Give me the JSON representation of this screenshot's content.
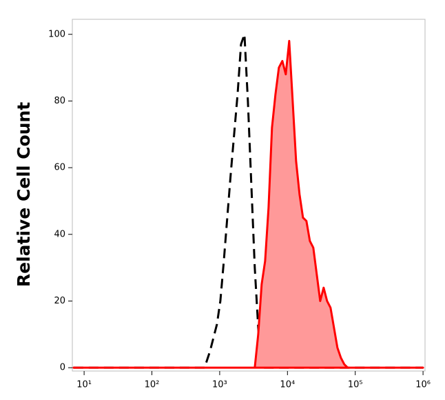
{
  "chart_data": {
    "type": "area",
    "y_label": "Relative Cell Count",
    "log_x": true,
    "xlim": [
      6.7,
      1070000
    ],
    "ylim": [
      -1,
      104.5
    ],
    "xticks": [
      {
        "value": 10,
        "label": "10¹"
      },
      {
        "value": 100,
        "label": "10²"
      },
      {
        "value": 1000,
        "label": "10³"
      },
      {
        "value": 10000,
        "label": "10⁴"
      },
      {
        "value": 100000,
        "label": "10⁵"
      },
      {
        "value": 1000000,
        "label": "10⁶"
      }
    ],
    "yticks": [
      0,
      20,
      40,
      60,
      80,
      100
    ],
    "series": [
      {
        "color": "#000000",
        "dashed": true,
        "filled": false,
        "x": [
          7,
          500,
          598,
          721,
          910,
          1023,
          1151,
          1294,
          1454,
          1634,
          1837,
          2064,
          2319,
          2607,
          2929,
          3293,
          3703,
          4160,
          1000000
        ],
        "values": [
          0,
          0,
          0,
          5,
          13,
          20,
          32,
          45,
          58,
          70,
          82,
          97,
          100,
          80,
          55,
          30,
          12,
          0,
          0
        ]
      },
      {
        "color": "#ff0000",
        "fill": "#ff9999",
        "dashed": false,
        "filled": true,
        "x": [
          7,
          3293,
          3703,
          4160,
          4680,
          5260,
          5910,
          6650,
          7470,
          8400,
          9440,
          10610,
          11930,
          13400,
          15070,
          16940,
          19040,
          21400,
          24060,
          27040,
          30400,
          34170,
          38410,
          43180,
          48540,
          54560,
          61330,
          68940,
          77500,
          1000000
        ],
        "values": [
          0,
          0,
          10,
          25,
          32,
          48,
          72,
          82,
          90,
          92,
          88,
          98,
          80,
          62,
          52,
          45,
          44,
          38,
          36,
          28,
          20,
          24,
          20,
          18,
          12,
          6,
          3,
          1,
          0,
          0
        ]
      }
    ]
  }
}
